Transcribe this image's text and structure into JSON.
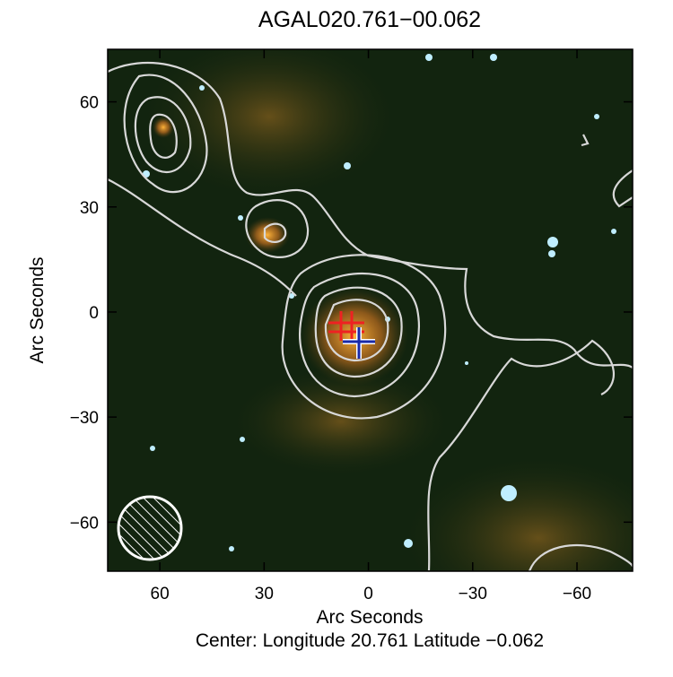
{
  "chart_data": {
    "type": "image",
    "title": "AGAL020.761−00.062",
    "x_label": "Arc Seconds",
    "y_label": "Arc Seconds",
    "footer": "Center:  Longitude 20.761 Latitude −0.062",
    "xlim": [
      75,
      -76
    ],
    "ylim": [
      -74,
      75
    ],
    "xticks": [
      60,
      30,
      0,
      {
        "value": -30,
        "label": "−30"
      },
      {
        "value": -60,
        "label": "−60"
      }
    ],
    "yticks": [
      {
        "value": -60,
        "label": "−60"
      },
      {
        "value": -30,
        "label": "−30"
      },
      0,
      30,
      60
    ],
    "grid": false
  }
}
